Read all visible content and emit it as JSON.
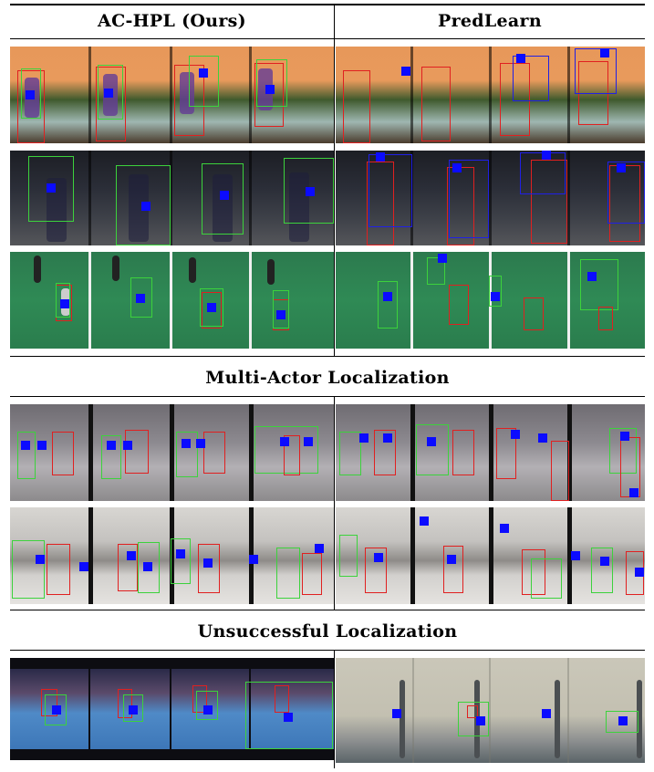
{
  "header": {
    "left_label": "AC-HPL (Ours)",
    "right_label": "PredLearn"
  },
  "sections": {
    "multi_actor": "Multi-Actor Localization",
    "unsuccessful": "Unsuccessful Localization"
  },
  "legend_colors": {
    "prediction_box": "#3cd23c",
    "ground_truth_box": "#e02020",
    "baseline_box": "#2020e6",
    "attention_marker": "#0b0bff"
  }
}
